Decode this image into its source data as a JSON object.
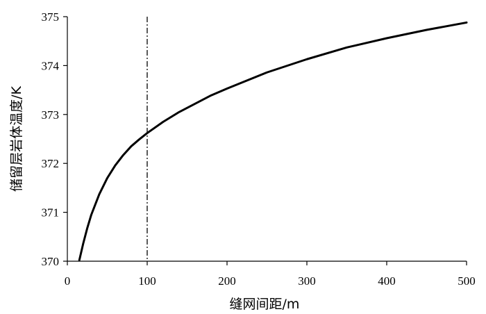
{
  "chart_data": {
    "type": "line",
    "xlabel": "缝网间距/m",
    "ylabel": "储留层岩体温度/K",
    "xlim": [
      0,
      500
    ],
    "ylim": [
      370,
      375
    ],
    "x_ticks": [
      "0",
      "100",
      "200",
      "300",
      "400",
      "500"
    ],
    "y_ticks": [
      "370",
      "371",
      "372",
      "373",
      "374",
      "375"
    ],
    "grid": false,
    "series": [
      {
        "color": "#000000",
        "x": [
          15,
          20,
          25,
          30,
          40,
          50,
          60,
          70,
          80,
          90,
          100,
          120,
          140,
          160,
          180,
          200,
          250,
          300,
          350,
          400,
          450,
          500
        ],
        "y": [
          370.02,
          370.37,
          370.68,
          370.95,
          371.37,
          371.7,
          371.96,
          372.17,
          372.35,
          372.49,
          372.62,
          372.85,
          373.05,
          373.22,
          373.39,
          373.53,
          373.86,
          374.13,
          374.37,
          374.56,
          374.73,
          374.88
        ]
      }
    ],
    "reference_line": {
      "x": 100,
      "style": "dash-dot",
      "color": "#000000"
    }
  }
}
